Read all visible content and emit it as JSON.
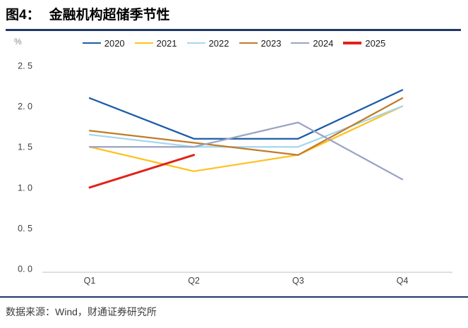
{
  "header": {
    "figure_label": "图4：",
    "title": "金融机构超储季节性"
  },
  "footer": {
    "source": "数据来源：Wind，财通证券研究所"
  },
  "colors": {
    "rule": "#1F3864",
    "axis": "#D6D6D6",
    "tick_text": "#404040"
  },
  "chart_data": {
    "type": "line",
    "title": "金融机构超储季节性",
    "ylabel": "%",
    "xlabel": "",
    "categories": [
      "Q1",
      "Q2",
      "Q3",
      "Q4"
    ],
    "ylim": [
      0.0,
      2.5
    ],
    "ytick_values": [
      2.5,
      2.0,
      1.5,
      1.0,
      0.5,
      0.0
    ],
    "ytick_labels": [
      "2. 5",
      "2. 0",
      "1. 5",
      "1. 0",
      "0. 5",
      "0. 0"
    ],
    "grid": false,
    "legend_position": "top",
    "series": [
      {
        "name": "2020",
        "color": "#1C5CA8",
        "values": [
          2.1,
          1.6,
          1.6,
          2.2
        ]
      },
      {
        "name": "2021",
        "color": "#FFC120",
        "values": [
          1.5,
          1.2,
          1.4,
          2.0
        ]
      },
      {
        "name": "2022",
        "color": "#A7D6EE",
        "values": [
          1.65,
          1.5,
          1.5,
          2.0
        ]
      },
      {
        "name": "2023",
        "color": "#C07B28",
        "values": [
          1.7,
          1.55,
          1.4,
          2.1
        ]
      },
      {
        "name": "2024",
        "color": "#99A3C4",
        "values": [
          1.5,
          1.5,
          1.8,
          1.1
        ]
      },
      {
        "name": "2025",
        "color": "#E02318",
        "values": [
          1.0,
          1.4,
          null,
          null
        ],
        "thick": true
      }
    ]
  }
}
